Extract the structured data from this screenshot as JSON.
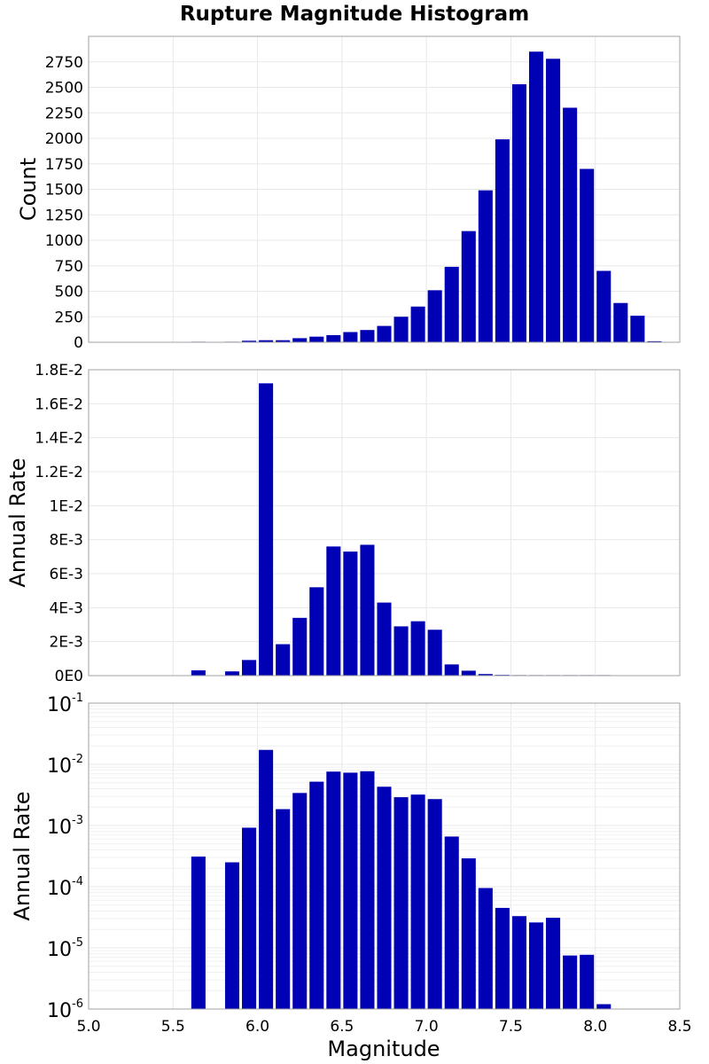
{
  "title": "Rupture Magnitude Histogram",
  "xlabel": "Magnitude",
  "bar_color": "#0000b4",
  "x_ticks": [
    "5.0",
    "5.5",
    "6.0",
    "6.5",
    "7.0",
    "7.5",
    "8.0",
    "8.5"
  ],
  "chart_data": [
    {
      "type": "bar",
      "title": "Rupture Magnitude Histogram",
      "ylabel": "Count",
      "xlim": [
        5.0,
        8.5
      ],
      "ylim": [
        0,
        3000
      ],
      "bin_width": 0.1,
      "y_ticks": [
        "0",
        "250",
        "500",
        "750",
        "1000",
        "1250",
        "1500",
        "1750",
        "2000",
        "2250",
        "2500",
        "2750"
      ],
      "x": [
        5.65,
        5.85,
        5.95,
        6.05,
        6.15,
        6.25,
        6.35,
        6.45,
        6.55,
        6.65,
        6.75,
        6.85,
        6.95,
        7.05,
        7.15,
        7.25,
        7.35,
        7.45,
        7.55,
        7.65,
        7.75,
        7.85,
        7.95,
        8.05,
        8.15,
        8.25,
        8.35
      ],
      "values": [
        5,
        5,
        15,
        20,
        20,
        40,
        55,
        70,
        100,
        120,
        160,
        250,
        350,
        510,
        740,
        1090,
        1490,
        1990,
        2530,
        2850,
        2780,
        2300,
        1700,
        700,
        385,
        260,
        10
      ]
    },
    {
      "type": "bar",
      "ylabel": "Annual Rate",
      "xlim": [
        5.0,
        8.5
      ],
      "ylim": [
        0,
        0.018
      ],
      "bin_width": 0.1,
      "y_ticks": [
        "0E0",
        "2E-3",
        "4E-3",
        "6E-3",
        "8E-3",
        "1E-2",
        "1.2E-2",
        "1.4E-2",
        "1.6E-2",
        "1.8E-2"
      ],
      "x": [
        5.65,
        5.85,
        5.95,
        6.05,
        6.15,
        6.25,
        6.35,
        6.45,
        6.55,
        6.65,
        6.75,
        6.85,
        6.95,
        7.05,
        7.15,
        7.25,
        7.35,
        7.45,
        7.55,
        7.65,
        7.75,
        7.85,
        7.95,
        8.05
      ],
      "values": [
        0.00031,
        0.00025,
        0.00092,
        0.0172,
        0.00185,
        0.0034,
        0.0052,
        0.0076,
        0.0073,
        0.0077,
        0.0043,
        0.0029,
        0.0032,
        0.0027,
        0.00066,
        0.00029,
        9.5e-05,
        4.5e-05,
        3.3e-05,
        2.6e-05,
        3.1e-05,
        7.5e-06,
        7.7e-06,
        1.2e-06
      ]
    },
    {
      "type": "bar",
      "ylabel": "Annual Rate",
      "y_scale": "log",
      "xlim": [
        5.0,
        8.5
      ],
      "ylim": [
        1e-06,
        0.1
      ],
      "bin_width": 0.1,
      "y_ticks": [
        {
          "base": "10",
          "exp": "-6"
        },
        {
          "base": "10",
          "exp": "-5"
        },
        {
          "base": "10",
          "exp": "-4"
        },
        {
          "base": "10",
          "exp": "-3"
        },
        {
          "base": "10",
          "exp": "-2"
        },
        {
          "base": "10",
          "exp": "-1"
        }
      ],
      "x": [
        5.65,
        5.85,
        5.95,
        6.05,
        6.15,
        6.25,
        6.35,
        6.45,
        6.55,
        6.65,
        6.75,
        6.85,
        6.95,
        7.05,
        7.15,
        7.25,
        7.35,
        7.45,
        7.55,
        7.65,
        7.75,
        7.85,
        7.95,
        8.05
      ],
      "values": [
        0.00031,
        0.00025,
        0.00092,
        0.0172,
        0.00185,
        0.0034,
        0.0052,
        0.0076,
        0.0073,
        0.0077,
        0.0043,
        0.0029,
        0.0032,
        0.0027,
        0.00066,
        0.00029,
        9.5e-05,
        4.5e-05,
        3.3e-05,
        2.6e-05,
        3.1e-05,
        7.5e-06,
        7.7e-06,
        1.2e-06
      ]
    }
  ]
}
